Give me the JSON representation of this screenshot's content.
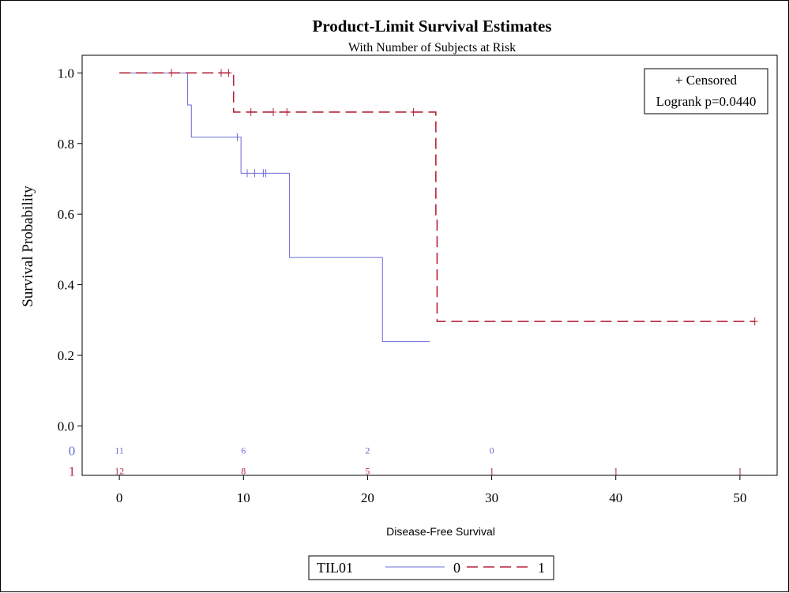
{
  "chart_data": {
    "type": "line",
    "subtype": "kaplan-meier step",
    "title": "Product-Limit Survival Estimates",
    "subtitle": "With Number of Subjects at Risk",
    "xlabel": "Disease-Free Survival",
    "ylabel": "Survival Probability",
    "xlim": [
      -3,
      53
    ],
    "ylim": [
      -0.14,
      1.05
    ],
    "x_ticks": [
      0,
      10,
      20,
      30,
      40,
      50
    ],
    "x_tick_labels": [
      "0",
      "10",
      "20",
      "30",
      "40",
      "50"
    ],
    "y_ticks": [
      0.0,
      0.2,
      0.4,
      0.6,
      0.8,
      1.0
    ],
    "y_tick_labels": [
      "0.0",
      "0.2",
      "0.4",
      "0.6",
      "0.8",
      "1.0"
    ],
    "grid": false,
    "inset": {
      "censored_label": "+ Censored",
      "logrank_label": "Logrank p=0.0440",
      "placement": "top-right"
    },
    "legend": {
      "title": "TIL01",
      "placement": "bottom-center",
      "entries": [
        "0",
        "1"
      ]
    },
    "series": [
      {
        "name": "0",
        "color": "#6b6bd6",
        "dash": "solid",
        "steps": [
          [
            0,
            1.0
          ],
          [
            5.5,
            0.909
          ],
          [
            5.8,
            0.818
          ],
          [
            9.8,
            0.716
          ],
          [
            13.7,
            0.477
          ],
          [
            21.2,
            0.239
          ],
          [
            25.0,
            0.239
          ]
        ],
        "censored": [
          [
            9.5,
            0.818
          ],
          [
            10.3,
            0.716
          ],
          [
            10.9,
            0.716
          ],
          [
            11.6,
            0.716
          ],
          [
            11.8,
            0.716
          ]
        ],
        "at_risk": [
          {
            "x": 0,
            "n": "11"
          },
          {
            "x": 10,
            "n": "6"
          },
          {
            "x": 20,
            "n": "2"
          },
          {
            "x": 30,
            "n": "0"
          }
        ]
      },
      {
        "name": "1",
        "color": "#b3243a",
        "dash": "dashed",
        "steps": [
          [
            0,
            1.0
          ],
          [
            9.2,
            0.889
          ],
          [
            25.5,
            0.593
          ],
          [
            25.6,
            0.296
          ],
          [
            51.2,
            0.296
          ]
        ],
        "censored": [
          [
            4.2,
            1.0
          ],
          [
            8.2,
            1.0
          ],
          [
            8.8,
            1.0
          ],
          [
            10.6,
            0.889
          ],
          [
            12.4,
            0.889
          ],
          [
            13.5,
            0.889
          ],
          [
            23.7,
            0.889
          ],
          [
            51.2,
            0.296
          ]
        ],
        "at_risk": [
          {
            "x": 0,
            "n": "12"
          },
          {
            "x": 10,
            "n": "8"
          },
          {
            "x": 20,
            "n": "5"
          },
          {
            "x": 30,
            "n": "1"
          },
          {
            "x": 40,
            "n": "1"
          },
          {
            "x": 50,
            "n": "1"
          }
        ]
      }
    ]
  }
}
